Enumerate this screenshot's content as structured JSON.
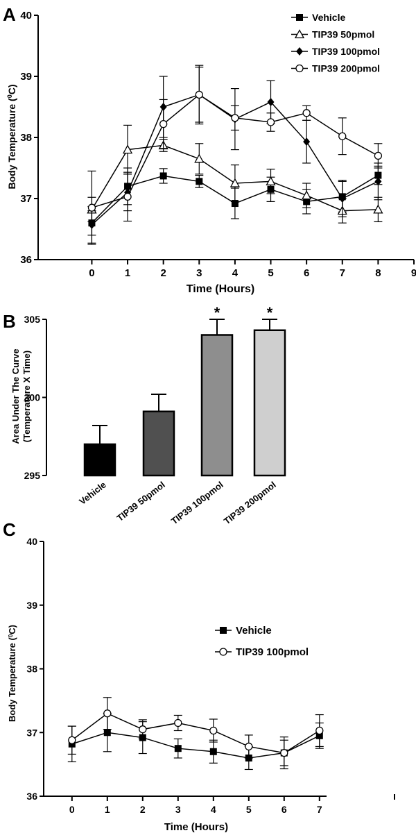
{
  "panels": {
    "a": {
      "letter": "A"
    },
    "b": {
      "letter": "B"
    },
    "c": {
      "letter": "C"
    }
  },
  "chart_data": [
    {
      "type": "line",
      "panel": "A",
      "xlabel": "Time (Hours)",
      "ylabel_main": "Body Temperature (",
      "ylabel_sup": "0",
      "ylabel_end": "C)",
      "xlim": [
        -1.5,
        9
      ],
      "ylim": [
        36,
        40
      ],
      "xticks": [
        0,
        1,
        2,
        3,
        4,
        5,
        6,
        7,
        8,
        9
      ],
      "yticks": [
        36,
        37,
        38,
        39,
        40
      ],
      "legend_position": "top-right",
      "x": [
        0,
        1,
        2,
        3,
        4,
        5,
        6,
        7,
        8
      ],
      "series": [
        {
          "name": "Vehicle",
          "marker": "filled-square",
          "values": [
            36.6,
            37.2,
            37.37,
            37.28,
            36.92,
            37.15,
            36.95,
            37.03,
            37.38
          ],
          "errors": [
            0.2,
            0.3,
            0.12,
            0.1,
            0.25,
            0.2,
            0.2,
            0.25,
            0.15
          ]
        },
        {
          "name": "TIP39 50pmol",
          "marker": "open-triangle",
          "values": [
            36.82,
            37.8,
            37.87,
            37.65,
            37.25,
            37.28,
            37.05,
            36.8,
            36.82
          ],
          "errors": [
            0.2,
            0.4,
            0.1,
            0.25,
            0.3,
            0.2,
            0.2,
            0.2,
            0.2
          ]
        },
        {
          "name": "TIP39 100pmol",
          "marker": "filled-diamond",
          "values": [
            36.57,
            37.1,
            38.5,
            38.7,
            38.3,
            38.58,
            37.93,
            37.0,
            37.28
          ],
          "errors": [
            0.3,
            0.3,
            0.5,
            0.45,
            0.5,
            0.35,
            0.35,
            0.3,
            0.3
          ]
        },
        {
          "name": "TIP39 200pmol",
          "marker": "open-circle",
          "values": [
            36.85,
            37.03,
            38.22,
            38.7,
            38.32,
            38.25,
            38.4,
            38.02,
            37.7
          ],
          "errors": [
            0.6,
            0.4,
            0.4,
            0.48,
            0.2,
            0.15,
            0.12,
            0.3,
            0.2
          ]
        }
      ]
    },
    {
      "type": "bar",
      "panel": "B",
      "ylabel_line1": "Area Under The Curve",
      "ylabel_line2": "(Temperature X Time)",
      "ylim": [
        295,
        305
      ],
      "yticks": [
        295,
        300,
        305
      ],
      "categories": [
        "Vehicle",
        "TIP39 50pmol",
        "TIP39 100pmol",
        "TIP39 200pmol"
      ],
      "values": [
        297.0,
        299.1,
        304.0,
        304.3
      ],
      "errors": [
        1.2,
        1.1,
        1.0,
        0.7
      ],
      "colors": [
        "#000000",
        "#505050",
        "#8e8e8e",
        "#cfcfcf"
      ],
      "annotations": [
        "",
        "",
        "*",
        "*"
      ]
    },
    {
      "type": "line",
      "panel": "C",
      "xlabel": "Time (Hours)",
      "ylabel_main": "Body Temperature (",
      "ylabel_sup": "0",
      "ylabel_end": "C)",
      "xlim": [
        -0.8,
        7.2
      ],
      "ylim": [
        36,
        40
      ],
      "xticks": [
        0,
        1,
        2,
        3,
        4,
        5,
        6,
        7
      ],
      "yticks": [
        36,
        37,
        38,
        39,
        40
      ],
      "legend_position": "center-right",
      "x": [
        0,
        1,
        2,
        3,
        4,
        5,
        6,
        7
      ],
      "series": [
        {
          "name": "Vehicle",
          "marker": "filled-square",
          "values": [
            36.82,
            37.0,
            36.92,
            36.75,
            36.7,
            36.6,
            36.68,
            36.95
          ],
          "errors": [
            0.28,
            0.3,
            0.25,
            0.15,
            0.18,
            0.18,
            0.25,
            0.2
          ]
        },
        {
          "name": "TIP39 100pmol",
          "marker": "open-circle",
          "values": [
            36.88,
            37.3,
            37.05,
            37.15,
            37.03,
            36.78,
            36.68,
            37.03
          ],
          "errors": [
            0.22,
            0.25,
            0.15,
            0.12,
            0.18,
            0.18,
            0.2,
            0.25
          ]
        }
      ]
    }
  ]
}
